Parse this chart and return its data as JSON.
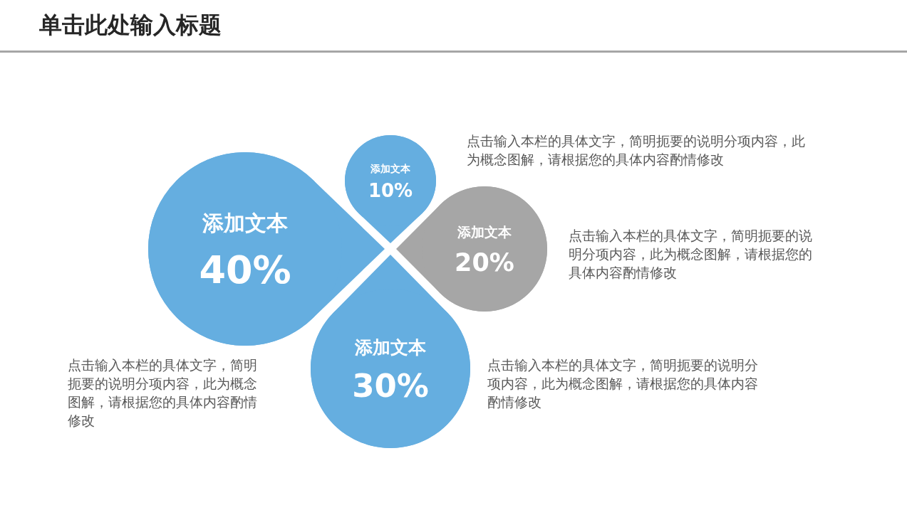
{
  "chart_data": {
    "type": "other",
    "title": "单击此处输入标题",
    "categories": [
      "添加文本",
      "添加文本",
      "添加文本",
      "添加文本"
    ],
    "values": [
      10,
      20,
      30,
      40
    ],
    "value_labels": [
      "10%",
      "20%",
      "30%",
      "40%"
    ],
    "colors": [
      "#65aee0",
      "#a6a6a6",
      "#65aee0",
      "#65aee0"
    ],
    "annotations": [
      "点击输入本栏的具体文字，简明扼要的说明分项内容，此为概念图解，请根据您的具体内容酌情修改",
      "点击输入本栏的具体文字，简明扼要的说明分项内容，此为概念图解，请根据您的具体内容酌情修改",
      "点击输入本栏的具体文字，简明扼要的说明分项内容，此为概念图解，请根据您的具体内容酌情修改",
      "点击输入本栏的具体文字，简明扼要的说明分项内容，此为概念图解，请根据您的具体内容酌情修改"
    ]
  }
}
